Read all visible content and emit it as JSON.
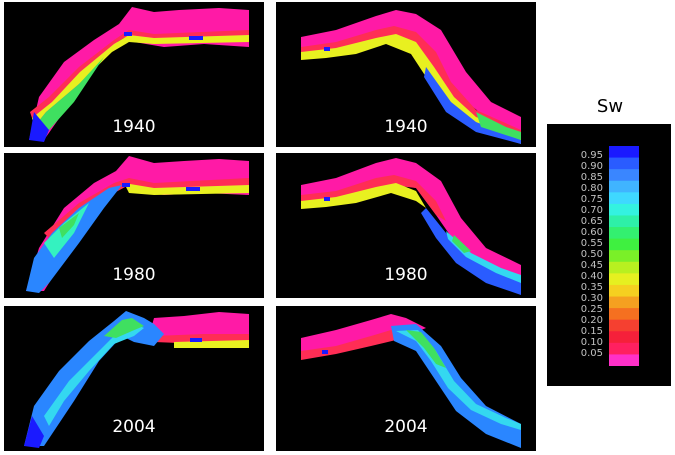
{
  "panels": [
    {
      "id": "left-1940",
      "year": "1940"
    },
    {
      "id": "right-1940",
      "year": "1940"
    },
    {
      "id": "left-1980",
      "year": "1980"
    },
    {
      "id": "right-1980",
      "year": "1980"
    },
    {
      "id": "left-2004",
      "year": "2004"
    },
    {
      "id": "right-2004",
      "year": "2004"
    }
  ],
  "legend": {
    "title": "Sw",
    "labels": [
      "0.95",
      "0.90",
      "0.85",
      "0.80",
      "0.75",
      "0.70",
      "0.65",
      "0.60",
      "0.55",
      "0.50",
      "0.45",
      "0.40",
      "0.35",
      "0.30",
      "0.25",
      "0.20",
      "0.15",
      "0.10",
      "0.05"
    ],
    "colors": [
      "#1a1aff",
      "#2a5cff",
      "#3a86ff",
      "#40b4ff",
      "#3fd8ff",
      "#34f2e0",
      "#2ef0a8",
      "#33f070",
      "#3ff040",
      "#7af028",
      "#b8f020",
      "#e6f020",
      "#f5d020",
      "#f5a020",
      "#f57020",
      "#f54030",
      "#f5203a",
      "#ff2060",
      "#ff30c8"
    ]
  }
}
